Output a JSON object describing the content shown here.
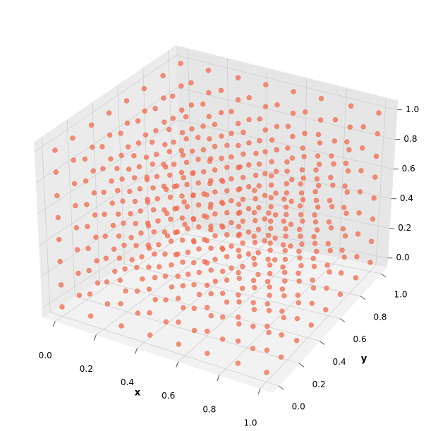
{
  "chart_data": {
    "type": "scatter3d",
    "xlabel": "x",
    "ylabel": "y",
    "color": "#f26b4f",
    "xlim": [
      0,
      1
    ],
    "ylim": [
      0,
      1
    ],
    "zlim": [
      0,
      1
    ],
    "xticks": [
      {
        "value": 0,
        "label": "0.0"
      },
      0.2,
      0.4,
      0.6,
      0.8,
      {
        "value": 1,
        "label": "1.0"
      }
    ],
    "yticks": [
      {
        "value": 0,
        "label": "0.0"
      },
      0.2,
      0.4,
      0.6,
      0.8,
      {
        "value": 1,
        "label": "1.0"
      }
    ],
    "zticks": [
      {
        "value": 0,
        "label": "0.0"
      },
      0.2,
      0.4,
      0.6,
      0.8,
      {
        "value": 1,
        "label": "1.0"
      }
    ],
    "x": [
      0,
      0,
      0,
      0,
      0,
      0,
      0,
      0,
      0,
      0,
      0,
      0,
      0,
      0,
      0,
      0,
      0,
      0,
      0,
      0,
      0,
      0,
      0,
      0,
      0,
      0,
      0,
      0,
      0,
      0,
      0,
      0,
      0,
      0,
      0,
      0,
      0,
      0,
      0,
      0,
      0,
      0,
      0,
      0,
      0,
      0,
      0,
      0,
      0,
      0,
      0,
      0,
      0,
      0,
      0,
      0,
      0,
      0,
      0,
      0,
      0,
      0,
      0,
      0,
      0.14,
      0.14,
      0.14,
      0.14,
      0.14,
      0.14,
      0.14,
      0.14,
      0.14,
      0.14,
      0.14,
      0.14,
      0.14,
      0.14,
      0.14,
      0.14,
      0.14,
      0.14,
      0.14,
      0.14,
      0.14,
      0.14,
      0.14,
      0.14,
      0.14,
      0.14,
      0.14,
      0.14,
      0.14,
      0.14,
      0.14,
      0.14,
      0.14,
      0.14,
      0.14,
      0.14,
      0.14,
      0.14,
      0.14,
      0.14,
      0.14,
      0.14,
      0.14,
      0.14,
      0.14,
      0.14,
      0.14,
      0.14,
      0.14,
      0.14,
      0.14,
      0.14,
      0.14,
      0.14,
      0.14,
      0.14,
      0.14,
      0.14,
      0.14,
      0.14,
      0.14,
      0.14,
      0.14,
      0.14,
      0.29,
      0.29,
      0.29,
      0.29,
      0.29,
      0.29,
      0.29,
      0.29,
      0.29,
      0.29,
      0.29,
      0.29,
      0.29,
      0.29,
      0.29,
      0.29,
      0.29,
      0.29,
      0.29,
      0.29,
      0.29,
      0.29,
      0.29,
      0.29,
      0.29,
      0.29,
      0.29,
      0.29,
      0.29,
      0.29,
      0.29,
      0.29,
      0.29,
      0.29,
      0.29,
      0.29,
      0.29,
      0.29,
      0.29,
      0.29,
      0.29,
      0.29,
      0.29,
      0.29,
      0.29,
      0.29,
      0.29,
      0.29,
      0.29,
      0.29,
      0.29,
      0.29,
      0.29,
      0.29,
      0.29,
      0.29,
      0.29,
      0.29,
      0.29,
      0.29,
      0.29,
      0.29,
      0.29,
      0.29,
      0.43,
      0.43,
      0.43,
      0.43,
      0.43,
      0.43,
      0.43,
      0.43,
      0.43,
      0.43,
      0.43,
      0.43,
      0.43,
      0.43,
      0.43,
      0.43,
      0.43,
      0.43,
      0.43,
      0.43,
      0.43,
      0.43,
      0.43,
      0.43,
      0.43,
      0.43,
      0.43,
      0.43,
      0.43,
      0.43,
      0.43,
      0.43,
      0.43,
      0.43,
      0.43,
      0.43,
      0.43,
      0.43,
      0.43,
      0.43,
      0.43,
      0.43,
      0.43,
      0.43,
      0.43,
      0.43,
      0.43,
      0.43,
      0.43,
      0.43,
      0.43,
      0.43,
      0.43,
      0.43,
      0.43,
      0.43,
      0.43,
      0.43,
      0.43,
      0.43,
      0.43,
      0.43,
      0.43,
      0.43,
      0.57,
      0.57,
      0.57,
      0.57,
      0.57,
      0.57,
      0.57,
      0.57,
      0.57,
      0.57,
      0.57,
      0.57,
      0.57,
      0.57,
      0.57,
      0.57,
      0.57,
      0.57,
      0.57,
      0.57,
      0.57,
      0.57,
      0.57,
      0.57,
      0.57,
      0.57,
      0.57,
      0.57,
      0.57,
      0.57,
      0.57,
      0.57,
      0.57,
      0.57,
      0.57,
      0.57,
      0.57,
      0.57,
      0.57,
      0.57,
      0.57,
      0.57,
      0.57,
      0.57,
      0.57,
      0.57,
      0.57,
      0.57,
      0.57,
      0.57,
      0.57,
      0.57,
      0.57,
      0.57,
      0.57,
      0.57,
      0.57,
      0.57,
      0.57,
      0.57,
      0.57,
      0.57,
      0.57,
      0.57,
      0.71,
      0.71,
      0.71,
      0.71,
      0.71,
      0.71,
      0.71,
      0.71,
      0.71,
      0.71,
      0.71,
      0.71,
      0.71,
      0.71,
      0.71,
      0.71,
      0.71,
      0.71,
      0.71,
      0.71,
      0.71,
      0.71,
      0.71,
      0.71,
      0.71,
      0.71,
      0.71,
      0.71,
      0.71,
      0.71,
      0.71,
      0.71,
      0.71,
      0.71,
      0.71,
      0.71,
      0.71,
      0.71,
      0.71,
      0.71,
      0.71,
      0.71,
      0.71,
      0.71,
      0.71,
      0.71,
      0.71,
      0.71,
      0.71,
      0.71,
      0.71,
      0.71,
      0.71,
      0.71,
      0.71,
      0.71,
      0.71,
      0.71,
      0.71,
      0.71,
      0.71,
      0.71,
      0.71,
      0.71,
      0.86,
      0.86,
      0.86,
      0.86,
      0.86,
      0.86,
      0.86,
      0.86,
      0.86,
      0.86,
      0.86,
      0.86,
      0.86,
      0.86,
      0.86,
      0.86,
      0.86,
      0.86,
      0.86,
      0.86,
      0.86,
      0.86,
      0.86,
      0.86,
      0.86,
      0.86,
      0.86,
      0.86,
      0.86,
      0.86,
      0.86,
      0.86,
      0.86,
      0.86,
      0.86,
      0.86,
      0.86,
      0.86,
      0.86,
      0.86,
      0.86,
      0.86,
      0.86,
      0.86,
      0.86,
      0.86,
      0.86,
      0.86,
      0.86,
      0.86,
      0.86,
      0.86,
      0.86,
      0.86,
      0.86,
      0.86,
      0.86,
      0.86,
      0.86,
      0.86,
      0.86,
      0.86,
      0.86,
      0.86,
      1,
      1,
      1,
      1,
      1,
      1,
      1,
      1,
      1,
      1,
      1,
      1,
      1,
      1,
      1,
      1,
      1,
      1,
      1,
      1,
      1,
      1,
      1,
      1,
      1,
      1,
      1,
      1,
      1,
      1,
      1,
      1,
      1,
      1,
      1,
      1,
      1,
      1,
      1,
      1,
      1,
      1,
      1,
      1,
      1,
      1,
      1,
      1,
      1,
      1,
      1,
      1,
      1,
      1,
      1,
      1,
      1,
      1,
      1,
      1,
      1,
      1,
      1,
      1
    ],
    "y": [
      0,
      0,
      0,
      0,
      0,
      0,
      0,
      0,
      0.14,
      0.14,
      0.14,
      0.14,
      0.14,
      0.14,
      0.14,
      0.14,
      0.29,
      0.29,
      0.29,
      0.29,
      0.29,
      0.29,
      0.29,
      0.29,
      0.43,
      0.43,
      0.43,
      0.43,
      0.43,
      0.43,
      0.43,
      0.43,
      0.57,
      0.57,
      0.57,
      0.57,
      0.57,
      0.57,
      0.57,
      0.57,
      0.71,
      0.71,
      0.71,
      0.71,
      0.71,
      0.71,
      0.71,
      0.71,
      0.86,
      0.86,
      0.86,
      0.86,
      0.86,
      0.86,
      0.86,
      0.86,
      1,
      1,
      1,
      1,
      1,
      1,
      1,
      1,
      0,
      0,
      0,
      0,
      0,
      0,
      0,
      0,
      0.14,
      0.14,
      0.14,
      0.14,
      0.14,
      0.14,
      0.14,
      0.14,
      0.29,
      0.29,
      0.29,
      0.29,
      0.29,
      0.29,
      0.29,
      0.29,
      0.43,
      0.43,
      0.43,
      0.43,
      0.43,
      0.43,
      0.43,
      0.43,
      0.57,
      0.57,
      0.57,
      0.57,
      0.57,
      0.57,
      0.57,
      0.57,
      0.71,
      0.71,
      0.71,
      0.71,
      0.71,
      0.71,
      0.71,
      0.71,
      0.86,
      0.86,
      0.86,
      0.86,
      0.86,
      0.86,
      0.86,
      0.86,
      1,
      1,
      1,
      1,
      1,
      1,
      1,
      1,
      0,
      0,
      0,
      0,
      0,
      0,
      0,
      0,
      0.14,
      0.14,
      0.14,
      0.14,
      0.14,
      0.14,
      0.14,
      0.14,
      0.29,
      0.29,
      0.29,
      0.29,
      0.29,
      0.29,
      0.29,
      0.29,
      0.43,
      0.43,
      0.43,
      0.43,
      0.43,
      0.43,
      0.43,
      0.43,
      0.57,
      0.57,
      0.57,
      0.57,
      0.57,
      0.57,
      0.57,
      0.57,
      0.71,
      0.71,
      0.71,
      0.71,
      0.71,
      0.71,
      0.71,
      0.71,
      0.86,
      0.86,
      0.86,
      0.86,
      0.86,
      0.86,
      0.86,
      0.86,
      1,
      1,
      1,
      1,
      1,
      1,
      1,
      1,
      0,
      0,
      0,
      0,
      0,
      0,
      0,
      0,
      0.14,
      0.14,
      0.14,
      0.14,
      0.14,
      0.14,
      0.14,
      0.14,
      0.29,
      0.29,
      0.29,
      0.29,
      0.29,
      0.29,
      0.29,
      0.29,
      0.43,
      0.43,
      0.43,
      0.43,
      0.43,
      0.43,
      0.43,
      0.43,
      0.57,
      0.57,
      0.57,
      0.57,
      0.57,
      0.57,
      0.57,
      0.57,
      0.71,
      0.71,
      0.71,
      0.71,
      0.71,
      0.71,
      0.71,
      0.71,
      0.86,
      0.86,
      0.86,
      0.86,
      0.86,
      0.86,
      0.86,
      0.86,
      1,
      1,
      1,
      1,
      1,
      1,
      1,
      1,
      0,
      0,
      0,
      0,
      0,
      0,
      0,
      0,
      0.14,
      0.14,
      0.14,
      0.14,
      0.14,
      0.14,
      0.14,
      0.14,
      0.29,
      0.29,
      0.29,
      0.29,
      0.29,
      0.29,
      0.29,
      0.29,
      0.43,
      0.43,
      0.43,
      0.43,
      0.43,
      0.43,
      0.43,
      0.43,
      0.57,
      0.57,
      0.57,
      0.57,
      0.57,
      0.57,
      0.57,
      0.57,
      0.71,
      0.71,
      0.71,
      0.71,
      0.71,
      0.71,
      0.71,
      0.71,
      0.86,
      0.86,
      0.86,
      0.86,
      0.86,
      0.86,
      0.86,
      0.86,
      1,
      1,
      1,
      1,
      1,
      1,
      1,
      1,
      0,
      0,
      0,
      0,
      0,
      0,
      0,
      0,
      0.14,
      0.14,
      0.14,
      0.14,
      0.14,
      0.14,
      0.14,
      0.14,
      0.29,
      0.29,
      0.29,
      0.29,
      0.29,
      0.29,
      0.29,
      0.29,
      0.43,
      0.43,
      0.43,
      0.43,
      0.43,
      0.43,
      0.43,
      0.43,
      0.57,
      0.57,
      0.57,
      0.57,
      0.57,
      0.57,
      0.57,
      0.57,
      0.71,
      0.71,
      0.71,
      0.71,
      0.71,
      0.71,
      0.71,
      0.71,
      0.86,
      0.86,
      0.86,
      0.86,
      0.86,
      0.86,
      0.86,
      0.86,
      1,
      1,
      1,
      1,
      1,
      1,
      1,
      1,
      0,
      0,
      0,
      0,
      0,
      0,
      0,
      0,
      0.14,
      0.14,
      0.14,
      0.14,
      0.14,
      0.14,
      0.14,
      0.14,
      0.29,
      0.29,
      0.29,
      0.29,
      0.29,
      0.29,
      0.29,
      0.29,
      0.43,
      0.43,
      0.43,
      0.43,
      0.43,
      0.43,
      0.43,
      0.43,
      0.57,
      0.57,
      0.57,
      0.57,
      0.57,
      0.57,
      0.57,
      0.57,
      0.71,
      0.71,
      0.71,
      0.71,
      0.71,
      0.71,
      0.71,
      0.71,
      0.86,
      0.86,
      0.86,
      0.86,
      0.86,
      0.86,
      0.86,
      0.86,
      1,
      1,
      1,
      1,
      1,
      1,
      1,
      1,
      0,
      0,
      0,
      0,
      0,
      0,
      0,
      0,
      0.14,
      0.14,
      0.14,
      0.14,
      0.14,
      0.14,
      0.14,
      0.14,
      0.29,
      0.29,
      0.29,
      0.29,
      0.29,
      0.29,
      0.29,
      0.29,
      0.43,
      0.43,
      0.43,
      0.43,
      0.43,
      0.43,
      0.43,
      0.43,
      0.57,
      0.57,
      0.57,
      0.57,
      0.57,
      0.57,
      0.57,
      0.57,
      0.71,
      0.71,
      0.71,
      0.71,
      0.71,
      0.71,
      0.71,
      0.71,
      0.86,
      0.86,
      0.86,
      0.86,
      0.86,
      0.86,
      0.86,
      0.86,
      1,
      1,
      1,
      1,
      1,
      1,
      1,
      1
    ],
    "z": [
      0,
      0.14,
      0.29,
      0.43,
      0.57,
      0.71,
      0.86,
      1,
      0,
      0.14,
      0.29,
      0.43,
      0.57,
      0.71,
      0.86,
      1,
      0,
      0.14,
      0.29,
      0.43,
      0.57,
      0.71,
      0.86,
      1,
      0,
      0.14,
      0.29,
      0.43,
      0.57,
      0.71,
      0.86,
      1,
      0,
      0.14,
      0.29,
      0.43,
      0.57,
      0.71,
      0.86,
      1,
      0,
      0.14,
      0.29,
      0.43,
      0.57,
      0.71,
      0.86,
      1,
      0,
      0.14,
      0.29,
      0.43,
      0.57,
      0.71,
      0.86,
      1,
      0,
      0.14,
      0.29,
      0.43,
      0.57,
      0.71,
      0.86,
      1,
      0,
      0.14,
      0.29,
      0.43,
      0.57,
      0.71,
      0.86,
      1,
      0,
      0.14,
      0.29,
      0.43,
      0.57,
      0.71,
      0.86,
      1,
      0,
      0.14,
      0.29,
      0.43,
      0.57,
      0.71,
      0.86,
      1,
      0,
      0.14,
      0.29,
      0.43,
      0.57,
      0.71,
      0.86,
      1,
      0,
      0.14,
      0.29,
      0.43,
      0.57,
      0.71,
      0.86,
      1,
      0,
      0.14,
      0.29,
      0.43,
      0.57,
      0.71,
      0.86,
      1,
      0,
      0.14,
      0.29,
      0.43,
      0.57,
      0.71,
      0.86,
      1,
      0,
      0.14,
      0.29,
      0.43,
      0.57,
      0.71,
      0.86,
      1,
      0,
      0.14,
      0.29,
      0.43,
      0.57,
      0.71,
      0.86,
      1,
      0,
      0.14,
      0.29,
      0.43,
      0.57,
      0.71,
      0.86,
      1,
      0,
      0.14,
      0.29,
      0.43,
      0.57,
      0.71,
      0.86,
      1,
      0,
      0.14,
      0.29,
      0.43,
      0.57,
      0.71,
      0.86,
      1,
      0,
      0.14,
      0.29,
      0.43,
      0.57,
      0.71,
      0.86,
      1,
      0,
      0.14,
      0.29,
      0.43,
      0.57,
      0.71,
      0.86,
      1,
      0,
      0.14,
      0.29,
      0.43,
      0.57,
      0.71,
      0.86,
      1,
      0,
      0.14,
      0.29,
      0.43,
      0.57,
      0.71,
      0.86,
      1,
      0,
      0.14,
      0.29,
      0.43,
      0.57,
      0.71,
      0.86,
      1,
      0,
      0.14,
      0.29,
      0.43,
      0.57,
      0.71,
      0.86,
      1,
      0,
      0.14,
      0.29,
      0.43,
      0.57,
      0.71,
      0.86,
      1,
      0,
      0.14,
      0.29,
      0.43,
      0.57,
      0.71,
      0.86,
      1,
      0,
      0.14,
      0.29,
      0.43,
      0.57,
      0.71,
      0.86,
      1,
      0,
      0.14,
      0.29,
      0.43,
      0.57,
      0.71,
      0.86,
      1,
      0,
      0.14,
      0.29,
      0.43,
      0.57,
      0.71,
      0.86,
      1,
      0,
      0.14,
      0.29,
      0.43,
      0.57,
      0.71,
      0.86,
      1,
      0,
      0.14,
      0.29,
      0.43,
      0.57,
      0.71,
      0.86,
      1,
      0,
      0.14,
      0.29,
      0.43,
      0.57,
      0.71,
      0.86,
      1,
      0,
      0.14,
      0.29,
      0.43,
      0.57,
      0.71,
      0.86,
      1,
      0,
      0.14,
      0.29,
      0.43,
      0.57,
      0.71,
      0.86,
      1,
      0,
      0.14,
      0.29,
      0.43,
      0.57,
      0.71,
      0.86,
      1,
      0,
      0.14,
      0.29,
      0.43,
      0.57,
      0.71,
      0.86,
      1,
      0,
      0.14,
      0.29,
      0.43,
      0.57,
      0.71,
      0.86,
      1,
      0,
      0.14,
      0.29,
      0.43,
      0.57,
      0.71,
      0.86,
      1,
      0,
      0.14,
      0.29,
      0.43,
      0.57,
      0.71,
      0.86,
      1,
      0,
      0.14,
      0.29,
      0.43,
      0.57,
      0.71,
      0.86,
      1,
      0,
      0.14,
      0.29,
      0.43,
      0.57,
      0.71,
      0.86,
      1,
      0,
      0.14,
      0.29,
      0.43,
      0.57,
      0.71,
      0.86,
      1,
      0,
      0.14,
      0.29,
      0.43,
      0.57,
      0.71,
      0.86,
      1,
      0,
      0.14,
      0.29,
      0.43,
      0.57,
      0.71,
      0.86,
      1,
      0,
      0.14,
      0.29,
      0.43,
      0.57,
      0.71,
      0.86,
      1,
      0,
      0.14,
      0.29,
      0.43,
      0.57,
      0.71,
      0.86,
      1,
      0,
      0.14,
      0.29,
      0.43,
      0.57,
      0.71,
      0.86,
      1,
      0,
      0.14,
      0.29,
      0.43,
      0.57,
      0.71,
      0.86,
      1,
      0,
      0.14,
      0.29,
      0.43,
      0.57,
      0.71,
      0.86,
      1,
      0,
      0.14,
      0.29,
      0.43,
      0.57,
      0.71,
      0.86,
      1,
      0,
      0.14,
      0.29,
      0.43,
      0.57,
      0.71,
      0.86,
      1,
      0,
      0.14,
      0.29,
      0.43,
      0.57,
      0.71,
      0.86,
      1,
      0,
      0.14,
      0.29,
      0.43,
      0.57,
      0.71,
      0.86,
      1,
      0,
      0.14,
      0.29,
      0.43,
      0.57,
      0.71,
      0.86,
      1,
      0,
      0.14,
      0.29,
      0.43,
      0.57,
      0.71,
      0.86,
      1,
      0,
      0.14,
      0.29,
      0.43,
      0.57,
      0.71,
      0.86,
      1,
      0,
      0.14,
      0.29,
      0.43,
      0.57,
      0.71,
      0.86,
      1,
      0,
      0.14,
      0.29,
      0.43,
      0.57,
      0.71,
      0.86,
      1,
      0,
      0.14,
      0.29,
      0.43,
      0.57,
      0.71,
      0.86,
      1,
      0,
      0.14,
      0.29,
      0.43,
      0.57,
      0.71,
      0.86,
      1,
      0,
      0.14,
      0.29,
      0.43,
      0.57,
      0.71,
      0.86,
      1,
      0,
      0.14,
      0.29,
      0.43,
      0.57,
      0.71,
      0.86,
      1
    ]
  }
}
